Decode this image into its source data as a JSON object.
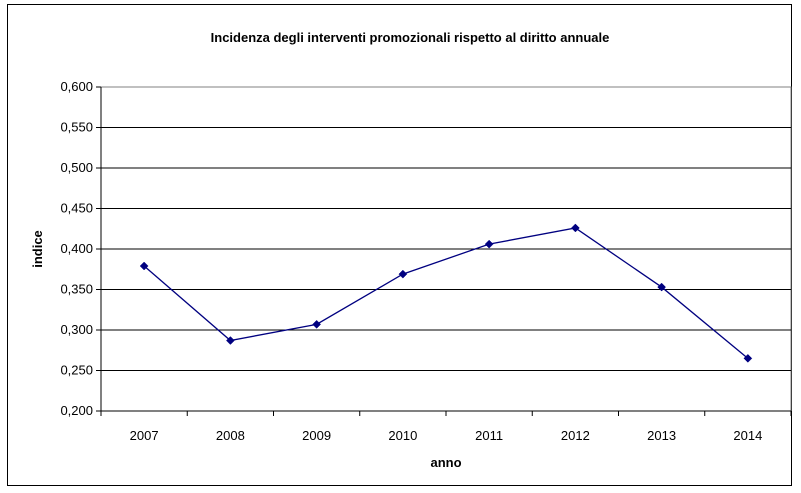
{
  "chart_data": {
    "type": "line",
    "title": "Incidenza degli interventi promozionali rispetto al diritto annuale",
    "xlabel": "anno",
    "ylabel": "indice",
    "categories": [
      "2007",
      "2008",
      "2009",
      "2010",
      "2011",
      "2012",
      "2013",
      "2014"
    ],
    "series": [
      {
        "values": [
          0.379,
          0.287,
          0.307,
          0.369,
          0.406,
          0.426,
          0.353,
          0.265
        ],
        "color": "#000080"
      }
    ],
    "ylim": [
      0.2,
      0.6
    ],
    "yticks": [
      "0,200",
      "0,250",
      "0,300",
      "0,350",
      "0,400",
      "0,450",
      "0,500",
      "0,550",
      "0,600"
    ],
    "grid": true,
    "legend": "none"
  }
}
